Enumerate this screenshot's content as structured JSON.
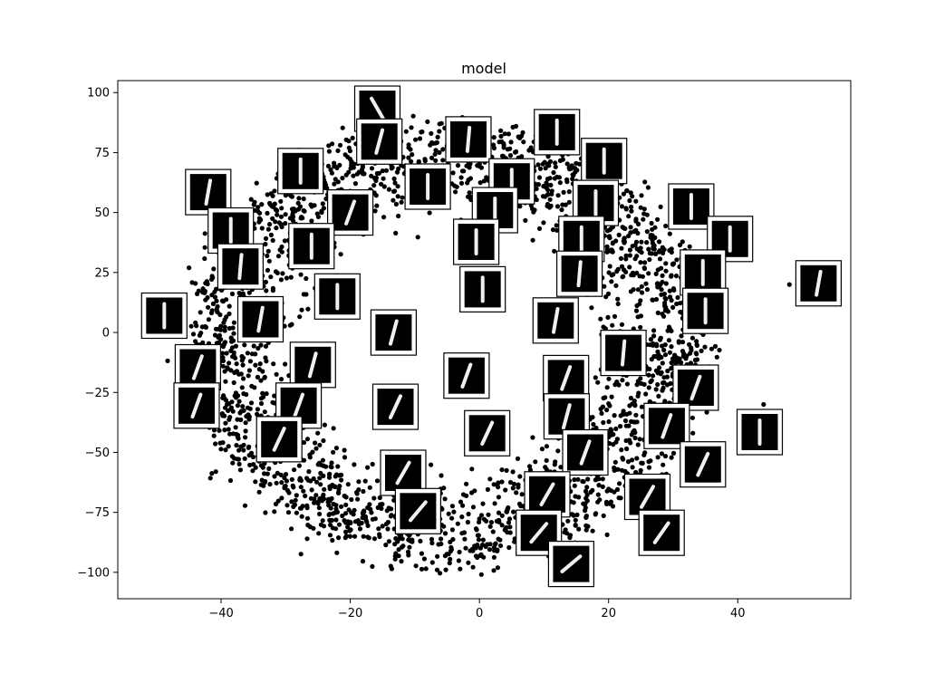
{
  "chart_data": {
    "type": "scatter",
    "title": "model",
    "xlabel": "",
    "ylabel": "",
    "xlim": [
      -56,
      57.5
    ],
    "ylim": [
      -111,
      105
    ],
    "xticks": [
      -40,
      -20,
      0,
      20,
      40
    ],
    "xtick_labels": [
      "−40",
      "−20",
      "0",
      "20",
      "40"
    ],
    "yticks": [
      -100,
      -75,
      -50,
      -25,
      0,
      25,
      50,
      75,
      100
    ],
    "ytick_labels": [
      "−100",
      "−75",
      "−50",
      "−25",
      "0",
      "25",
      "50",
      "75",
      "100"
    ],
    "grid": false,
    "point_color": "#000000",
    "thumbnail_color": "#000000",
    "thumbnail_digit": "1",
    "thumbnails": [
      {
        "x": -15.8,
        "y": 93.3,
        "tilt": -30
      },
      {
        "x": -15.5,
        "y": 79.6,
        "tilt": 15
      },
      {
        "x": -1.7,
        "y": 80.5,
        "tilt": 5
      },
      {
        "x": 12.0,
        "y": 83.5,
        "tilt": 0
      },
      {
        "x": 19.3,
        "y": 71.5,
        "tilt": 0
      },
      {
        "x": -27.7,
        "y": 67.3,
        "tilt": 0
      },
      {
        "x": -42.0,
        "y": 58.5,
        "tilt": 10
      },
      {
        "x": -8.0,
        "y": 60.8,
        "tilt": 0
      },
      {
        "x": 5.0,
        "y": 63.0,
        "tilt": 0
      },
      {
        "x": 18.0,
        "y": 54.0,
        "tilt": 0
      },
      {
        "x": 32.8,
        "y": 52.5,
        "tilt": 0
      },
      {
        "x": -20.0,
        "y": 50.0,
        "tilt": 20
      },
      {
        "x": 2.4,
        "y": 51.0,
        "tilt": 0
      },
      {
        "x": -38.5,
        "y": 42.5,
        "tilt": 0
      },
      {
        "x": -26.0,
        "y": 36.0,
        "tilt": 0
      },
      {
        "x": -0.5,
        "y": 37.8,
        "tilt": 0
      },
      {
        "x": 15.8,
        "y": 39.0,
        "tilt": 0
      },
      {
        "x": 38.8,
        "y": 39.0,
        "tilt": 0
      },
      {
        "x": -37.0,
        "y": 27.5,
        "tilt": 5
      },
      {
        "x": 15.5,
        "y": 24.5,
        "tilt": 5
      },
      {
        "x": 34.6,
        "y": 25.0,
        "tilt": 0
      },
      {
        "x": 52.5,
        "y": 20.5,
        "tilt": 10
      },
      {
        "x": 0.5,
        "y": 18.0,
        "tilt": 0
      },
      {
        "x": -22.0,
        "y": 15.0,
        "tilt": 0
      },
      {
        "x": -48.8,
        "y": 7.0,
        "tilt": 0
      },
      {
        "x": -33.9,
        "y": 5.5,
        "tilt": 10
      },
      {
        "x": 11.8,
        "y": 5.0,
        "tilt": 10
      },
      {
        "x": 35.0,
        "y": 9.0,
        "tilt": 0
      },
      {
        "x": -13.3,
        "y": 0.0,
        "tilt": 15
      },
      {
        "x": 22.3,
        "y": -8.5,
        "tilt": 5
      },
      {
        "x": -43.6,
        "y": -14.5,
        "tilt": 20
      },
      {
        "x": -25.8,
        "y": -13.5,
        "tilt": 15
      },
      {
        "x": -2.0,
        "y": -18.0,
        "tilt": 20
      },
      {
        "x": 13.4,
        "y": -19.0,
        "tilt": 20
      },
      {
        "x": 33.5,
        "y": -23.0,
        "tilt": 20
      },
      {
        "x": -43.8,
        "y": -30.5,
        "tilt": 20
      },
      {
        "x": -28.0,
        "y": -30.5,
        "tilt": 20
      },
      {
        "x": -13.0,
        "y": -31.0,
        "tilt": 25
      },
      {
        "x": 13.5,
        "y": -35.0,
        "tilt": 15
      },
      {
        "x": 29.0,
        "y": -39.0,
        "tilt": 20
      },
      {
        "x": 43.4,
        "y": -41.5,
        "tilt": 0
      },
      {
        "x": -31.0,
        "y": -44.5,
        "tilt": 25
      },
      {
        "x": 1.2,
        "y": -42.0,
        "tilt": 25
      },
      {
        "x": 16.4,
        "y": -50.0,
        "tilt": 20
      },
      {
        "x": 34.6,
        "y": -55.0,
        "tilt": 25
      },
      {
        "x": -11.8,
        "y": -58.5,
        "tilt": 30
      },
      {
        "x": 10.5,
        "y": -67.5,
        "tilt": 30
      },
      {
        "x": 26.0,
        "y": -68.5,
        "tilt": 30
      },
      {
        "x": -9.5,
        "y": -74.5,
        "tilt": 40
      },
      {
        "x": 9.2,
        "y": -83.5,
        "tilt": 40
      },
      {
        "x": 28.2,
        "y": -83.5,
        "tilt": 35
      },
      {
        "x": 14.2,
        "y": -96.5,
        "tilt": 50
      }
    ]
  }
}
